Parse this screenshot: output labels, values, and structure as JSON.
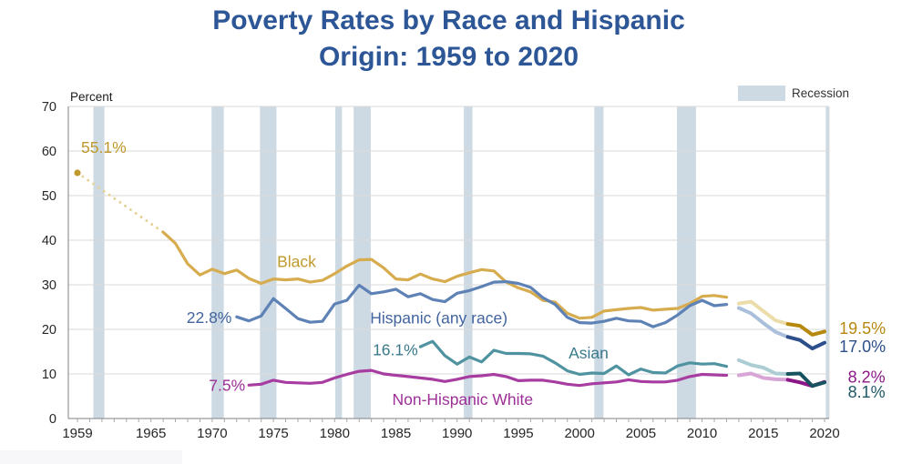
{
  "title": {
    "line1": "Poverty Rates by Race and Hispanic",
    "line2": "Origin: 1959 to 2020",
    "color": "#2D5697"
  },
  "legend": {
    "label": "Recession",
    "swatch_color": "#CEDAE3"
  },
  "axes": {
    "y_label": "Percent",
    "y_ticks": [
      0,
      10,
      20,
      30,
      40,
      50,
      60,
      70
    ],
    "x_ticks": [
      1959,
      1965,
      1970,
      1975,
      1980,
      1985,
      1990,
      1995,
      2000,
      2005,
      2010,
      2015,
      2020
    ],
    "tick_color": "#262626",
    "grid_color": "#D9D9D9",
    "axis_color": "#808080"
  },
  "chart_data": {
    "type": "line",
    "title": "Poverty Rates by Race and Hispanic Origin: 1959 to 2020",
    "ylabel": "Percent",
    "ylim": [
      0,
      70
    ],
    "xlim": [
      1959,
      2021
    ],
    "grid": "horizontal",
    "legend_position": "top-right",
    "recessions": [
      [
        1960.3,
        1961.2
      ],
      [
        1969.95,
        1970.95
      ],
      [
        1973.9,
        1975.25
      ],
      [
        1980.05,
        1980.6
      ],
      [
        1981.55,
        1982.95
      ],
      [
        1990.55,
        1991.25
      ],
      [
        2001.2,
        2001.95
      ],
      [
        2007.95,
        2009.5
      ],
      [
        2020.1,
        2020.45
      ]
    ],
    "series": [
      {
        "id": "black",
        "label": "Black",
        "color": "#D6AC4F",
        "light_color": "#ECDCA9",
        "dark_color": "#B6890E",
        "gap_color": "#E4D092",
        "dot_color": "#C0992C",
        "dot": [
          1959,
          55.1
        ],
        "dotted": [
          [
            1959,
            55.1
          ],
          [
            1966,
            41.8
          ]
        ],
        "main": [
          [
            1966,
            41.8
          ],
          [
            1967,
            39.3
          ],
          [
            1968,
            34.7
          ],
          [
            1969,
            32.2
          ],
          [
            1970,
            33.5
          ],
          [
            1971,
            32.5
          ],
          [
            1972,
            33.3
          ],
          [
            1973,
            31.4
          ],
          [
            1974,
            30.3
          ],
          [
            1975,
            31.3
          ],
          [
            1976,
            31.1
          ],
          [
            1977,
            31.3
          ],
          [
            1978,
            30.6
          ],
          [
            1979,
            31.0
          ],
          [
            1980,
            32.5
          ],
          [
            1981,
            34.2
          ],
          [
            1982,
            35.6
          ],
          [
            1983,
            35.7
          ],
          [
            1984,
            33.8
          ],
          [
            1985,
            31.3
          ],
          [
            1986,
            31.1
          ],
          [
            1987,
            32.4
          ],
          [
            1988,
            31.3
          ],
          [
            1989,
            30.7
          ],
          [
            1990,
            31.9
          ],
          [
            1991,
            32.7
          ],
          [
            1992,
            33.4
          ],
          [
            1993,
            33.1
          ],
          [
            1994,
            30.6
          ],
          [
            1995,
            29.3
          ],
          [
            1996,
            28.4
          ],
          [
            1997,
            26.5
          ],
          [
            1998,
            26.1
          ],
          [
            1999,
            23.6
          ],
          [
            2000,
            22.5
          ],
          [
            2001,
            22.7
          ],
          [
            2002,
            24.1
          ],
          [
            2003,
            24.4
          ],
          [
            2004,
            24.7
          ],
          [
            2005,
            24.9
          ],
          [
            2006,
            24.3
          ],
          [
            2007,
            24.5
          ],
          [
            2008,
            24.7
          ],
          [
            2009,
            25.8
          ],
          [
            2010,
            27.4
          ],
          [
            2011,
            27.6
          ],
          [
            2012,
            27.2
          ]
        ],
        "light": [
          [
            2013,
            25.8
          ],
          [
            2014,
            26.2
          ],
          [
            2015,
            24.1
          ],
          [
            2016,
            22.0
          ],
          [
            2017,
            21.2
          ]
        ],
        "dark": [
          [
            2017,
            21.2
          ],
          [
            2018,
            20.8
          ],
          [
            2019,
            18.8
          ],
          [
            2020,
            19.5
          ]
        ]
      },
      {
        "id": "hispanic",
        "label": "Hispanic (any race)",
        "color": "#5E82B5",
        "light_color": "#AABFDC",
        "dark_color": "#2C4F8C",
        "main": [
          [
            1972,
            22.8
          ],
          [
            1973,
            21.9
          ],
          [
            1974,
            23.0
          ],
          [
            1975,
            26.9
          ],
          [
            1976,
            24.7
          ],
          [
            1977,
            22.4
          ],
          [
            1978,
            21.6
          ],
          [
            1979,
            21.8
          ],
          [
            1980,
            25.7
          ],
          [
            1981,
            26.5
          ],
          [
            1982,
            29.9
          ],
          [
            1983,
            28.0
          ],
          [
            1984,
            28.4
          ],
          [
            1985,
            29.0
          ],
          [
            1986,
            27.3
          ],
          [
            1987,
            28.0
          ],
          [
            1988,
            26.7
          ],
          [
            1989,
            26.2
          ],
          [
            1990,
            28.1
          ],
          [
            1991,
            28.7
          ],
          [
            1992,
            29.6
          ],
          [
            1993,
            30.6
          ],
          [
            1994,
            30.7
          ],
          [
            1995,
            30.3
          ],
          [
            1996,
            29.4
          ],
          [
            1997,
            27.1
          ],
          [
            1998,
            25.6
          ],
          [
            1999,
            22.7
          ],
          [
            2000,
            21.5
          ],
          [
            2001,
            21.4
          ],
          [
            2002,
            21.8
          ],
          [
            2003,
            22.5
          ],
          [
            2004,
            21.9
          ],
          [
            2005,
            21.8
          ],
          [
            2006,
            20.6
          ],
          [
            2007,
            21.5
          ],
          [
            2008,
            23.2
          ],
          [
            2009,
            25.3
          ],
          [
            2010,
            26.5
          ],
          [
            2011,
            25.3
          ],
          [
            2012,
            25.6
          ]
        ],
        "light": [
          [
            2013,
            24.8
          ],
          [
            2014,
            23.6
          ],
          [
            2015,
            21.4
          ],
          [
            2016,
            19.4
          ],
          [
            2017,
            18.3
          ]
        ],
        "dark": [
          [
            2017,
            18.3
          ],
          [
            2018,
            17.6
          ],
          [
            2019,
            15.7
          ],
          [
            2020,
            17.0
          ]
        ]
      },
      {
        "id": "white-nh",
        "label": "Non-Hispanic White",
        "color": "#A73DA1",
        "light_color": "#D7A5D6",
        "dark_color": "#8B1786",
        "main": [
          [
            1973,
            7.5
          ],
          [
            1974,
            7.7
          ],
          [
            1975,
            8.6
          ],
          [
            1976,
            8.1
          ],
          [
            1977,
            8.0
          ],
          [
            1978,
            7.9
          ],
          [
            1979,
            8.1
          ],
          [
            1980,
            9.1
          ],
          [
            1981,
            9.9
          ],
          [
            1982,
            10.6
          ],
          [
            1983,
            10.8
          ],
          [
            1984,
            10.0
          ],
          [
            1985,
            9.7
          ],
          [
            1986,
            9.4
          ],
          [
            1987,
            9.1
          ],
          [
            1988,
            8.8
          ],
          [
            1989,
            8.3
          ],
          [
            1990,
            8.8
          ],
          [
            1991,
            9.4
          ],
          [
            1992,
            9.6
          ],
          [
            1993,
            9.9
          ],
          [
            1994,
            9.4
          ],
          [
            1995,
            8.5
          ],
          [
            1996,
            8.6
          ],
          [
            1997,
            8.6
          ],
          [
            1998,
            8.2
          ],
          [
            1999,
            7.7
          ],
          [
            2000,
            7.4
          ],
          [
            2001,
            7.8
          ],
          [
            2002,
            8.0
          ],
          [
            2003,
            8.2
          ],
          [
            2004,
            8.7
          ],
          [
            2005,
            8.3
          ],
          [
            2006,
            8.2
          ],
          [
            2007,
            8.2
          ],
          [
            2008,
            8.6
          ],
          [
            2009,
            9.4
          ],
          [
            2010,
            9.9
          ],
          [
            2011,
            9.8
          ],
          [
            2012,
            9.7
          ]
        ],
        "light": [
          [
            2013,
            9.7
          ],
          [
            2014,
            10.1
          ],
          [
            2015,
            9.1
          ],
          [
            2016,
            8.8
          ],
          [
            2017,
            8.7
          ]
        ],
        "dark": [
          [
            2017,
            8.7
          ],
          [
            2018,
            8.1
          ],
          [
            2019,
            7.3
          ],
          [
            2020,
            8.2
          ]
        ]
      },
      {
        "id": "asian",
        "label": "Asian",
        "color": "#4F93A1",
        "light_color": "#ABCDD3",
        "dark_color": "#17525F",
        "main": [
          [
            1987,
            16.1
          ],
          [
            1988,
            17.3
          ],
          [
            1989,
            14.1
          ],
          [
            1990,
            12.2
          ],
          [
            1991,
            13.8
          ],
          [
            1992,
            12.7
          ],
          [
            1993,
            15.3
          ],
          [
            1994,
            14.6
          ],
          [
            1995,
            14.6
          ],
          [
            1996,
            14.5
          ],
          [
            1997,
            14.0
          ],
          [
            1998,
            12.5
          ],
          [
            1999,
            10.7
          ],
          [
            2000,
            9.9
          ],
          [
            2001,
            10.2
          ],
          [
            2002,
            10.1
          ],
          [
            2003,
            11.8
          ],
          [
            2004,
            9.8
          ],
          [
            2005,
            11.1
          ],
          [
            2006,
            10.3
          ],
          [
            2007,
            10.2
          ],
          [
            2008,
            11.8
          ],
          [
            2009,
            12.5
          ],
          [
            2010,
            12.2
          ],
          [
            2011,
            12.3
          ],
          [
            2012,
            11.7
          ]
        ],
        "light": [
          [
            2013,
            13.1
          ],
          [
            2014,
            12.0
          ],
          [
            2015,
            11.4
          ],
          [
            2016,
            10.1
          ],
          [
            2017,
            10.0
          ]
        ],
        "dark": [
          [
            2017,
            10.0
          ],
          [
            2018,
            10.1
          ],
          [
            2019,
            7.3
          ],
          [
            2020,
            8.1
          ]
        ]
      }
    ],
    "annotations": [
      {
        "text": "55.1%",
        "year": 1959.3,
        "value": 60.8,
        "anchor": "start",
        "color": "#C0992C",
        "size": 17.5
      },
      {
        "text": "Black",
        "year": 1975.3,
        "value": 35.2,
        "anchor": "start",
        "color": "#C0992C",
        "size": 17.5
      },
      {
        "text": "22.8%",
        "year": 1971.6,
        "value": 22.7,
        "anchor": "end",
        "color": "#41639E",
        "size": 17.5
      },
      {
        "text": "Hispanic (any race)",
        "year": 1982.9,
        "value": 22.6,
        "anchor": "start",
        "color": "#41639E",
        "size": 17.5
      },
      {
        "text": "16.1%",
        "year": 1986.8,
        "value": 15.4,
        "anchor": "end",
        "color": "#3A7A8C",
        "size": 17.5
      },
      {
        "text": "Asian",
        "year": 1999.1,
        "value": 14.7,
        "anchor": "start",
        "color": "#3A7A8C",
        "size": 17.5
      },
      {
        "text": "7.5%",
        "year": 1972.7,
        "value": 7.5,
        "anchor": "end",
        "color": "#9D2F97",
        "size": 17.5
      },
      {
        "text": "Non-Hispanic White",
        "year": 1984.7,
        "value": 4.3,
        "anchor": "start",
        "color": "#9D2F97",
        "size": 17.5
      },
      {
        "text": "19.5%",
        "year": 2021.2,
        "value": 20.3,
        "anchor": "start",
        "color": "#B6890E",
        "size": 18
      },
      {
        "text": "17.0%",
        "year": 2021.2,
        "value": 16.2,
        "anchor": "start",
        "color": "#2C4F8C",
        "size": 18
      },
      {
        "text": "8.2%",
        "year": 2021.9,
        "value": 9.3,
        "anchor": "start",
        "color": "#8B1786",
        "size": 18
      },
      {
        "text": "8.1%",
        "year": 2021.9,
        "value": 6.0,
        "anchor": "start",
        "color": "#1D5765",
        "size": 18
      }
    ]
  }
}
